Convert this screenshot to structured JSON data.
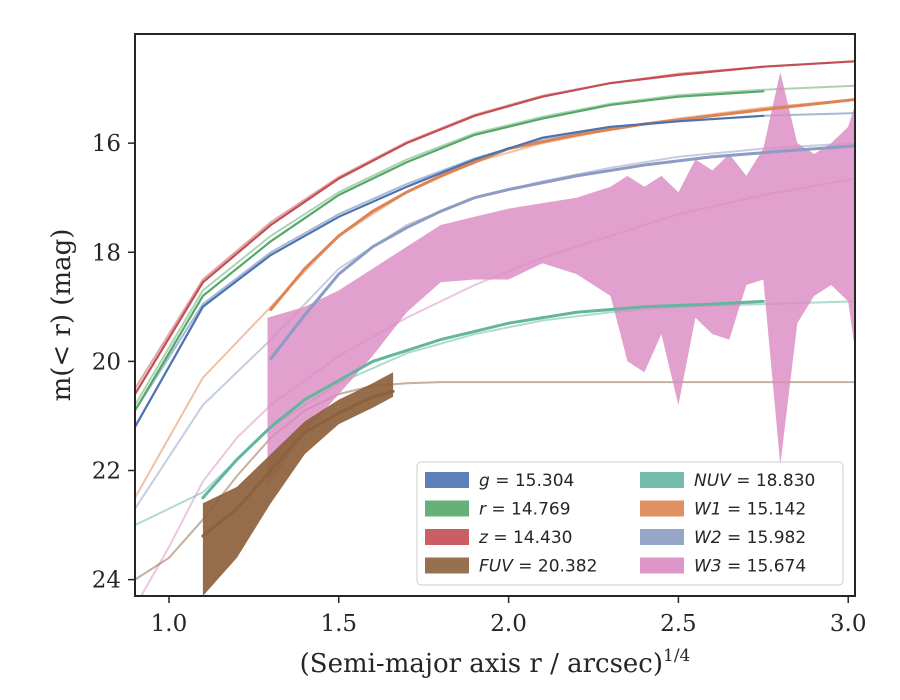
{
  "chart_data": {
    "type": "line",
    "xlabel_main": "(Semi-major axis r / arcsec)",
    "xlabel_sup": "1/4",
    "ylabel": "m(< r) (mag)",
    "xlim": [
      0.9,
      3.02
    ],
    "ylim": [
      24.3,
      14.0
    ],
    "y_inverted": true,
    "grid": false,
    "legend_position": "lower-right",
    "x_ticks": [
      {
        "value": 1.0,
        "label": "1.0"
      },
      {
        "value": 1.5,
        "label": "1.5"
      },
      {
        "value": 2.0,
        "label": "2.0"
      },
      {
        "value": 2.5,
        "label": "2.5"
      },
      {
        "value": 3.0,
        "label": "3.0"
      }
    ],
    "y_ticks": [
      {
        "value": 16,
        "label": "16"
      },
      {
        "value": 18,
        "label": "18"
      },
      {
        "value": 20,
        "label": "20"
      },
      {
        "value": 22,
        "label": "22"
      },
      {
        "value": 24,
        "label": "24"
      }
    ],
    "series": [
      {
        "name": "g = 15.304",
        "band": "g",
        "value": "15.304",
        "color": "#4c72b0",
        "x": [
          0.9,
          1.1,
          1.3,
          1.5,
          1.7,
          1.9,
          2.1,
          2.3,
          2.5,
          2.75
        ],
        "y": [
          21.2,
          19.0,
          18.05,
          17.35,
          16.8,
          16.3,
          15.9,
          15.7,
          15.6,
          15.5
        ],
        "model_x": [
          0.9,
          1.1,
          1.3,
          1.5,
          1.7,
          1.9,
          2.1,
          2.3,
          2.5,
          2.75,
          3.02
        ],
        "model_y": [
          20.9,
          18.95,
          18.0,
          17.3,
          16.75,
          16.28,
          15.92,
          15.72,
          15.6,
          15.5,
          15.45
        ]
      },
      {
        "name": "r = 14.769",
        "band": "r",
        "value": "14.769",
        "color": "#55a868",
        "x": [
          0.9,
          1.1,
          1.3,
          1.5,
          1.7,
          1.9,
          2.1,
          2.3,
          2.5,
          2.75
        ],
        "y": [
          20.9,
          18.8,
          17.8,
          16.95,
          16.35,
          15.85,
          15.55,
          15.3,
          15.15,
          15.05
        ],
        "model_x": [
          0.9,
          1.1,
          1.3,
          1.5,
          1.7,
          1.9,
          2.1,
          2.3,
          2.5,
          2.75,
          3.02
        ],
        "model_y": [
          20.8,
          18.7,
          17.7,
          16.9,
          16.3,
          15.82,
          15.52,
          15.28,
          15.12,
          15.02,
          14.95
        ]
      },
      {
        "name": "z = 14.430",
        "band": "z",
        "value": "14.430",
        "color": "#c44e52",
        "x": [
          0.9,
          1.1,
          1.3,
          1.5,
          1.7,
          1.9,
          2.1,
          2.3,
          2.5,
          2.75,
          3.02
        ],
        "y": [
          20.6,
          18.55,
          17.5,
          16.65,
          16.0,
          15.5,
          15.15,
          14.9,
          14.75,
          14.6,
          14.5
        ],
        "model_x": [
          0.9,
          1.1,
          1.3,
          1.5,
          1.7,
          1.9,
          2.1,
          2.3,
          2.5,
          2.75,
          3.02
        ],
        "model_y": [
          20.5,
          18.5,
          17.45,
          16.62,
          15.98,
          15.48,
          15.13,
          14.9,
          14.73,
          14.6,
          14.5
        ]
      },
      {
        "name": "FUV = 20.382",
        "band": "FUV",
        "value": "20.382",
        "color": "#8c613c",
        "x": [
          1.1,
          1.2,
          1.3,
          1.4,
          1.5,
          1.6,
          1.66
        ],
        "y": [
          23.2,
          22.7,
          22.0,
          21.3,
          20.95,
          20.65,
          20.55
        ],
        "y_low": [
          22.6,
          22.3,
          21.7,
          21.1,
          20.7,
          20.4,
          20.2
        ],
        "y_high": [
          24.3,
          23.6,
          22.6,
          21.7,
          21.15,
          20.85,
          20.65
        ],
        "model_x": [
          0.9,
          1.0,
          1.1,
          1.2,
          1.3,
          1.4,
          1.5,
          1.6,
          1.7,
          1.8,
          2.0,
          2.5,
          3.02
        ],
        "model_y": [
          24.0,
          23.6,
          22.9,
          22.1,
          21.4,
          20.9,
          20.6,
          20.45,
          20.4,
          20.38,
          20.38,
          20.38,
          20.38
        ]
      },
      {
        "name": "NUV = 18.830",
        "band": "NUV",
        "value": "18.830",
        "color": "#64b5a0",
        "x": [
          1.1,
          1.2,
          1.3,
          1.4,
          1.5,
          1.6,
          1.7,
          1.8,
          1.9,
          2.0,
          2.2,
          2.4,
          2.6,
          2.75
        ],
        "y": [
          22.5,
          21.8,
          21.2,
          20.7,
          20.35,
          20.0,
          19.8,
          19.6,
          19.45,
          19.3,
          19.1,
          19.0,
          18.95,
          18.9
        ],
        "model_x": [
          0.9,
          1.1,
          1.3,
          1.5,
          1.7,
          1.9,
          2.1,
          2.3,
          2.5,
          2.75,
          3.02
        ],
        "model_y": [
          23.0,
          22.4,
          21.2,
          20.4,
          19.85,
          19.5,
          19.25,
          19.1,
          19.0,
          18.95,
          18.9
        ]
      },
      {
        "name": "W1 = 15.142",
        "band": "W1",
        "value": "15.142",
        "color": "#dd8452",
        "x": [
          1.3,
          1.4,
          1.5,
          1.6,
          1.7,
          1.8,
          1.9,
          2.0,
          2.2,
          2.4,
          2.6,
          2.8,
          3.02
        ],
        "y": [
          19.05,
          18.3,
          17.7,
          17.25,
          16.9,
          16.6,
          16.35,
          16.1,
          15.85,
          15.65,
          15.5,
          15.35,
          15.2
        ],
        "model_x": [
          0.9,
          1.1,
          1.3,
          1.5,
          1.7,
          1.9,
          2.1,
          2.3,
          2.5,
          2.75,
          3.02
        ],
        "model_y": [
          22.5,
          20.3,
          19.0,
          17.7,
          16.9,
          16.35,
          16.0,
          15.75,
          15.55,
          15.35,
          15.2
        ]
      },
      {
        "name": "W2 = 15.982",
        "band": "W2",
        "value": "15.982",
        "color": "#8c9cc2",
        "x": [
          1.3,
          1.4,
          1.5,
          1.6,
          1.7,
          1.8,
          1.9,
          2.0,
          2.2,
          2.4,
          2.6,
          2.8,
          3.02
        ],
        "y": [
          19.95,
          19.15,
          18.4,
          17.9,
          17.55,
          17.25,
          17.0,
          16.85,
          16.6,
          16.4,
          16.25,
          16.15,
          16.05
        ],
        "model_x": [
          0.9,
          1.1,
          1.3,
          1.5,
          1.7,
          1.9,
          2.1,
          2.3,
          2.5,
          2.75,
          3.02
        ],
        "model_y": [
          22.7,
          20.8,
          19.6,
          18.3,
          17.5,
          17.0,
          16.7,
          16.45,
          16.25,
          16.1,
          16.0
        ]
      },
      {
        "name": "W3 = 15.674",
        "band": "W3",
        "value": "15.674",
        "color": "#da8bc3",
        "x": [
          1.29,
          1.4,
          1.5,
          1.6,
          1.7,
          1.8,
          1.9,
          2.0,
          2.1,
          2.2,
          2.3,
          2.35,
          2.4,
          2.45,
          2.5,
          2.55,
          2.6,
          2.65,
          2.7,
          2.75,
          2.8,
          2.85,
          2.9,
          2.95,
          3.0,
          3.02
        ],
        "y_low": [
          19.2,
          19.0,
          18.7,
          18.3,
          17.9,
          17.5,
          17.35,
          17.2,
          17.1,
          17.0,
          16.8,
          16.6,
          16.8,
          16.6,
          16.9,
          16.3,
          16.5,
          16.2,
          16.6,
          16.1,
          14.7,
          16.0,
          16.2,
          16.0,
          15.7,
          15.3
        ],
        "y_high": [
          22.3,
          21.3,
          20.6,
          19.9,
          19.1,
          18.55,
          18.5,
          18.5,
          18.2,
          18.4,
          18.8,
          20.0,
          20.2,
          19.5,
          20.8,
          19.2,
          19.5,
          19.6,
          18.6,
          18.5,
          21.9,
          19.3,
          18.8,
          18.6,
          18.9,
          19.8
        ],
        "model_x": [
          0.9,
          1.0,
          1.1,
          1.2,
          1.3,
          1.5,
          1.7,
          1.9,
          2.1,
          2.3,
          2.5,
          2.75,
          3.02
        ],
        "model_y": [
          24.5,
          23.4,
          22.2,
          21.4,
          20.8,
          19.9,
          19.2,
          18.6,
          18.1,
          17.7,
          17.3,
          16.95,
          16.65
        ]
      }
    ]
  }
}
